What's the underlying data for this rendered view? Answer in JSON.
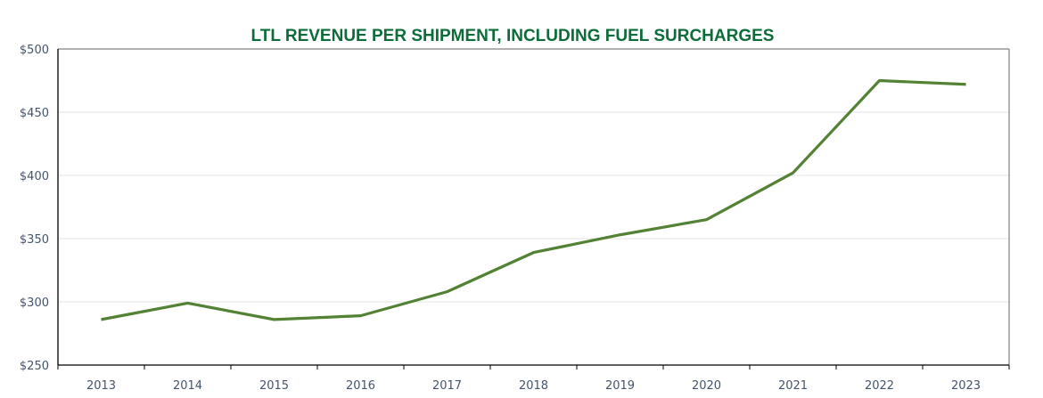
{
  "chart_data": {
    "type": "line",
    "title": "LTL REVENUE PER SHIPMENT, INCLUDING FUEL SURCHARGES",
    "xlabel": "",
    "ylabel": "",
    "categories": [
      "2013",
      "2014",
      "2015",
      "2016",
      "2017",
      "2018",
      "2019",
      "2020",
      "2021",
      "2022",
      "2023"
    ],
    "series": [
      {
        "name": "LTL revenue per shipment",
        "values": [
          286,
          299,
          286,
          289,
          308,
          339,
          353,
          365,
          402,
          475,
          472
        ],
        "color": "#548235"
      }
    ],
    "ylim": [
      250,
      500
    ],
    "yticks": [
      250,
      300,
      350,
      400,
      450,
      500
    ],
    "ytick_labels": [
      "$250",
      "$300",
      "$350",
      "$400",
      "$450",
      "$500"
    ],
    "grid": true,
    "legend": "none"
  }
}
